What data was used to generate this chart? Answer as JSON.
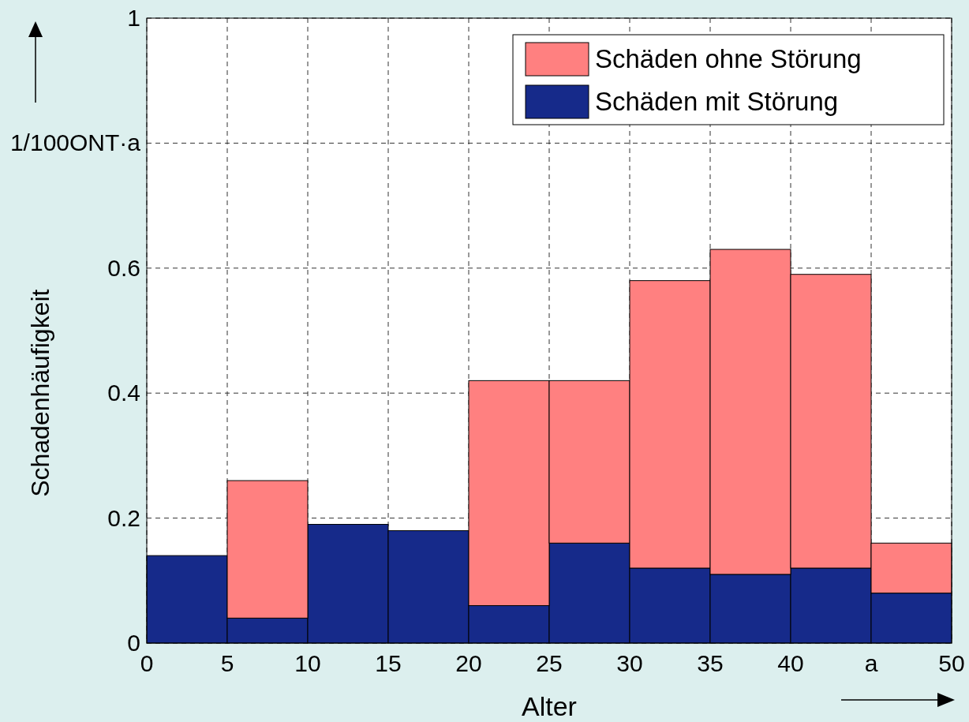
{
  "chart_data": {
    "type": "bar",
    "xlabel": "Alter",
    "ylabel": "Schadenhäufigkeit",
    "x": [
      2.5,
      7.5,
      12.5,
      17.5,
      22.5,
      27.5,
      32.5,
      37.5,
      42.5,
      47.5
    ],
    "stacked": true,
    "series": [
      {
        "name": "Schäden mit Störung",
        "color": "#162a8a",
        "values": [
          0.14,
          0.04,
          0.19,
          0.18,
          0.06,
          0.16,
          0.12,
          0.11,
          0.12,
          0.08
        ]
      },
      {
        "name": "Schäden ohne Störung",
        "color": "#ff8080",
        "values": [
          null,
          0.22,
          null,
          null,
          0.36,
          0.26,
          0.46,
          0.52,
          0.47,
          0.08
        ]
      }
    ],
    "xlim": [
      0,
      50
    ],
    "xticks": [
      0,
      5,
      10,
      15,
      20,
      25,
      30,
      35,
      40,
      {
        "value": 45,
        "label": "a"
      },
      50
    ],
    "ylim": [
      0,
      1
    ],
    "yticks": [
      0,
      0.2,
      0.4,
      0.6,
      {
        "value": 0.8,
        "label": "1/100ONT·a"
      },
      1
    ],
    "grid": true,
    "legend": "top right"
  }
}
